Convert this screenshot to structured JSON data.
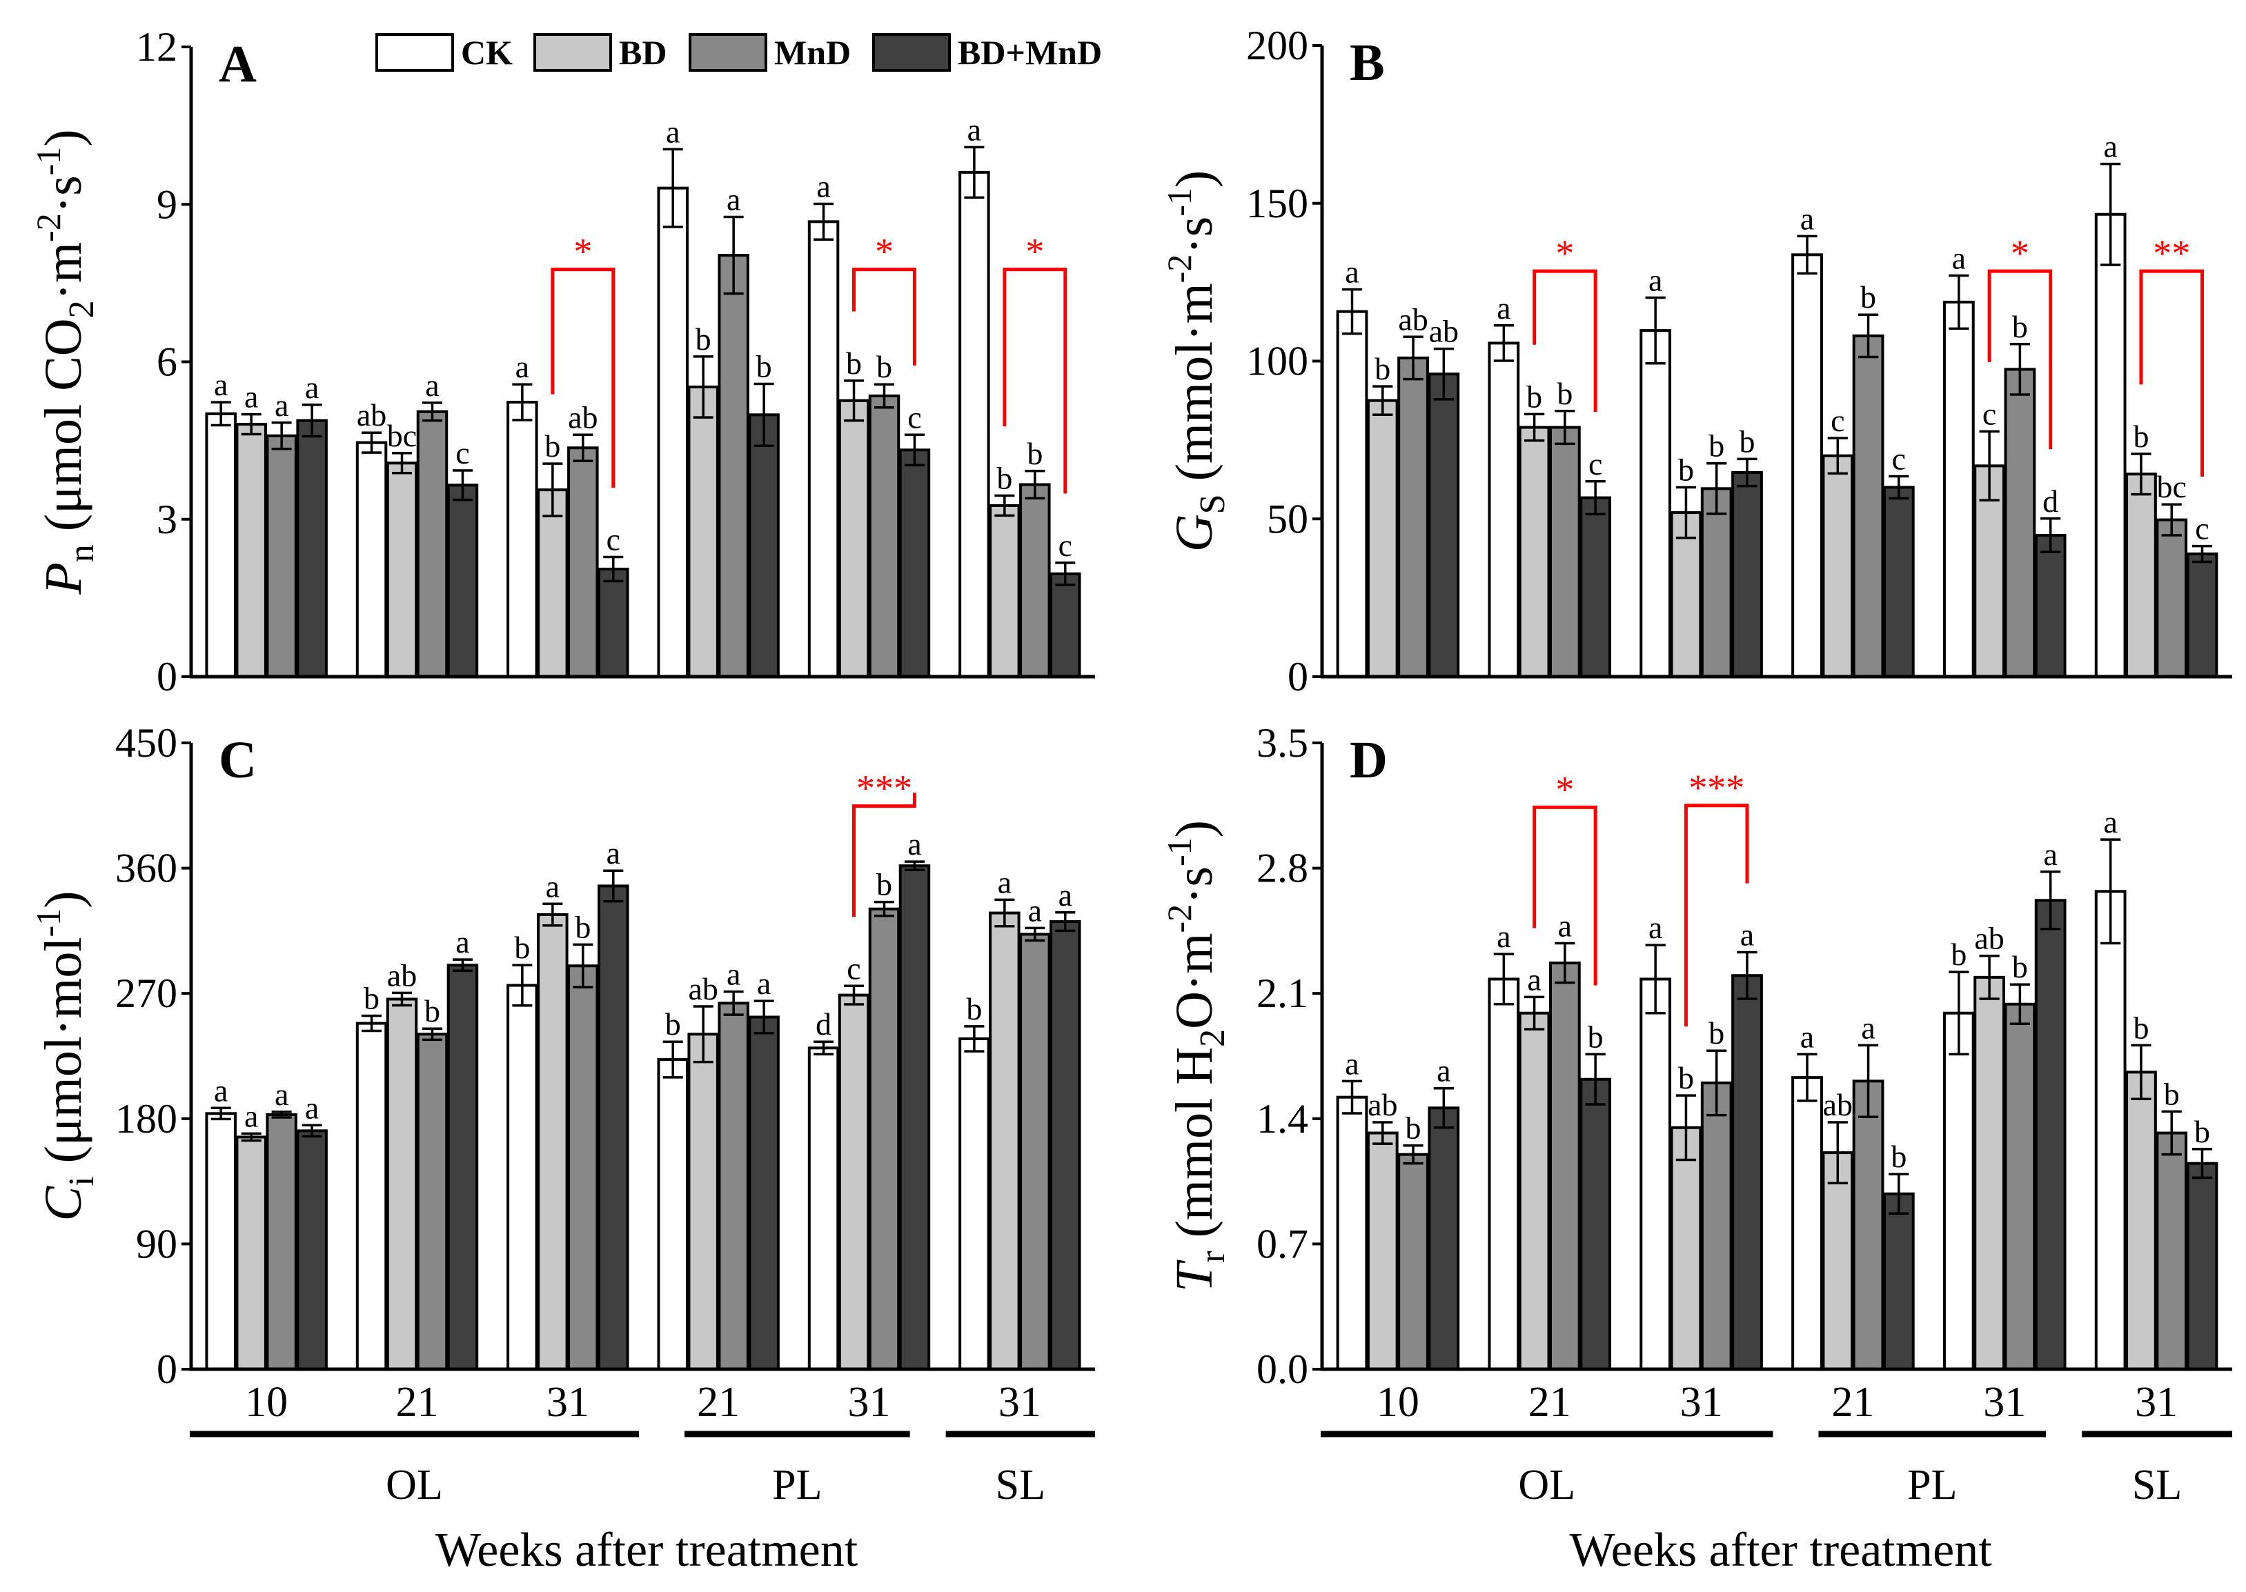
{
  "legend": {
    "position": "top",
    "items": [
      {
        "label": "CK",
        "color": "#ffffff"
      },
      {
        "label": "BD",
        "color": "#c8c8c8"
      },
      {
        "label": "MnD",
        "color": "#888888"
      },
      {
        "label": "BD+MnD",
        "color": "#404040"
      }
    ]
  },
  "sig_color": "#ff0000",
  "chart_data": [
    {
      "type": "bar",
      "panel": "A",
      "ylabel": [
        {
          "t": "P",
          "s": "i"
        },
        {
          "t": "n",
          "s": "sub"
        },
        {
          "t": " (μmol CO"
        },
        {
          "t": "2",
          "s": "sub"
        },
        {
          "t": "·m"
        },
        {
          "t": "-2",
          "s": "sup"
        },
        {
          "t": "·s"
        },
        {
          "t": "-1",
          "s": "sup"
        },
        {
          "t": ")"
        }
      ],
      "ylim": [
        0,
        12
      ],
      "yticks": [
        0,
        3,
        6,
        9,
        12
      ],
      "ytick_labels": [
        "0",
        "3",
        "6",
        "9",
        "12"
      ],
      "show_x_labels": false,
      "categories": [
        "10",
        "21",
        "31",
        "21",
        "31",
        "31"
      ],
      "series": [
        {
          "name": "CK",
          "values": [
            5.01,
            4.46,
            5.23,
            9.31,
            8.67,
            9.61
          ],
          "errors": [
            0.22,
            0.19,
            0.34,
            0.74,
            0.34,
            0.48
          ],
          "letters": [
            "a",
            "ab",
            "a",
            "a",
            "a",
            "a"
          ]
        },
        {
          "name": "BD",
          "values": [
            4.81,
            4.07,
            3.56,
            5.52,
            5.26,
            3.26
          ],
          "errors": [
            0.19,
            0.19,
            0.5,
            0.58,
            0.38,
            0.19
          ],
          "letters": [
            "a",
            "bc",
            "b",
            "b",
            "b",
            "b"
          ]
        },
        {
          "name": "MnD",
          "values": [
            4.59,
            5.05,
            4.36,
            8.03,
            5.35,
            3.66
          ],
          "errors": [
            0.25,
            0.17,
            0.25,
            0.73,
            0.22,
            0.26
          ],
          "letters": [
            "a",
            "a",
            "ab",
            "a",
            "b",
            "b"
          ]
        },
        {
          "name": "BD+MnD",
          "values": [
            4.88,
            3.65,
            2.05,
            4.99,
            4.32,
            1.96
          ],
          "errors": [
            0.3,
            0.28,
            0.23,
            0.59,
            0.29,
            0.21
          ],
          "letters": [
            "a",
            "c",
            "c",
            "b",
            "c",
            "c"
          ]
        }
      ],
      "significance": [
        {
          "group": 2,
          "from": 1,
          "to": 3,
          "label": "*",
          "level": 7.76
        },
        {
          "group": 4,
          "from": 1,
          "to": 3,
          "label": "*",
          "level": 7.76
        },
        {
          "group": 5,
          "from": 1,
          "to": 3,
          "label": "*",
          "level": 7.76
        }
      ]
    },
    {
      "type": "bar",
      "panel": "B",
      "ylabel": [
        {
          "t": "G",
          "s": "i"
        },
        {
          "t": "S",
          "s": "sub"
        },
        {
          "t": " (mmol·m"
        },
        {
          "t": "-2",
          "s": "sup"
        },
        {
          "t": "·s"
        },
        {
          "t": "-1",
          "s": "sup"
        },
        {
          "t": ")"
        }
      ],
      "ylim": [
        0,
        200
      ],
      "yticks": [
        0,
        50,
        100,
        150,
        200
      ],
      "ytick_labels": [
        "0",
        "50",
        "100",
        "150",
        "200"
      ],
      "show_x_labels": false,
      "categories": [
        "10",
        "21",
        "31",
        "21",
        "31",
        "31"
      ],
      "series": [
        {
          "name": "CK",
          "values": [
            115.7,
            105.7,
            109.7,
            133.7,
            118.7,
            146.5
          ],
          "errors": [
            7,
            5.6,
            10.4,
            5.9,
            8.4,
            16
          ],
          "letters": [
            "a",
            "a",
            "a",
            "a",
            "a",
            "a"
          ]
        },
        {
          "name": "BD",
          "values": [
            87.5,
            79,
            52,
            70,
            66.8,
            64.2
          ],
          "errors": [
            4.5,
            4.2,
            8,
            5.6,
            10.9,
            6.4
          ],
          "letters": [
            "b",
            "b",
            "b",
            "c",
            "c",
            "b"
          ]
        },
        {
          "name": "MnD",
          "values": [
            101,
            79,
            59.6,
            108,
            97.4,
            49.7
          ],
          "errors": [
            6.7,
            5.2,
            8,
            6.7,
            8,
            4.9
          ],
          "letters": [
            "ab",
            "b",
            "b",
            "b",
            "b",
            "bc"
          ]
        },
        {
          "name": "BD+MnD",
          "values": [
            95.9,
            56.7,
            64.7,
            60,
            44.8,
            38.9
          ],
          "errors": [
            8,
            5.2,
            4.3,
            3.5,
            5.3,
            2.5
          ],
          "letters": [
            "ab",
            "c",
            "b",
            "c",
            "d",
            "c"
          ]
        }
      ],
      "significance": [
        {
          "group": 1,
          "from": 1,
          "to": 3,
          "label": "*",
          "level": 128.5
        },
        {
          "group": 4,
          "from": 1,
          "to": 3,
          "label": "*",
          "level": 128.5
        },
        {
          "group": 5,
          "from": 1,
          "to": 3,
          "label": "**",
          "level": 128.5
        }
      ]
    },
    {
      "type": "bar",
      "panel": "C",
      "ylabel": [
        {
          "t": "C",
          "s": "i"
        },
        {
          "t": "i",
          "s": "sub"
        },
        {
          "t": " (μmol·mol"
        },
        {
          "t": "-1",
          "s": "sup"
        },
        {
          "t": ")"
        }
      ],
      "ylim": [
        0,
        450
      ],
      "yticks": [
        0,
        90,
        180,
        270,
        360,
        450
      ],
      "ytick_labels": [
        "0",
        "90",
        "180",
        "270",
        "360",
        "450"
      ],
      "show_x_labels": true,
      "categories": [
        "10",
        "21",
        "31",
        "21",
        "31",
        "31"
      ],
      "category_groups": [
        {
          "label": "OL",
          "start": 0,
          "end": 2
        },
        {
          "label": "PL",
          "start": 3,
          "end": 4
        },
        {
          "label": "SL",
          "start": 5,
          "end": 5
        }
      ],
      "xlabel": "Weeks after treatment",
      "series": [
        {
          "name": "CK",
          "values": [
            183.7,
            248.5,
            275.8,
            222.5,
            230.8,
            237.4
          ],
          "errors": [
            4,
            5.4,
            14.5,
            12.8,
            4.5,
            9
          ],
          "letters": [
            "a",
            "b",
            "b",
            "b",
            "d",
            "b"
          ]
        },
        {
          "name": "BD",
          "values": [
            166.8,
            265.9,
            326.6,
            240.7,
            268.8,
            327.8
          ],
          "errors": [
            2.5,
            4.5,
            7.8,
            20,
            6.6,
            9.5
          ],
          "letters": [
            "a",
            "ab",
            "a",
            "ab",
            "c",
            "a"
          ]
        },
        {
          "name": "MnD",
          "values": [
            182.9,
            240.7,
            289.8,
            263,
            330.7,
            312.5
          ],
          "errors": [
            2,
            4,
            15.3,
            8.3,
            5,
            4.5
          ],
          "letters": [
            "a",
            "b",
            "b",
            "a",
            "b",
            "a"
          ]
        },
        {
          "name": "BD+MnD",
          "values": [
            171.3,
            290.3,
            347.2,
            253,
            361.7,
            321.6
          ],
          "errors": [
            4,
            4,
            11,
            11.6,
            3,
            6.6
          ],
          "letters": [
            "a",
            "a",
            "a",
            "a",
            "a",
            "a"
          ]
        }
      ],
      "significance": [
        {
          "group": 4,
          "from": 1,
          "to": 3,
          "label": "***",
          "level": 404.6
        }
      ]
    },
    {
      "type": "bar",
      "panel": "D",
      "ylabel": [
        {
          "t": "T",
          "s": "i"
        },
        {
          "t": "r",
          "s": "sub"
        },
        {
          "t": " (mmol H"
        },
        {
          "t": "2",
          "s": "sub"
        },
        {
          "t": "O·m"
        },
        {
          "t": "-2",
          "s": "sup"
        },
        {
          "t": "·s"
        },
        {
          "t": "-1",
          "s": "sup"
        },
        {
          "t": ")"
        }
      ],
      "ylim": [
        0,
        3.5
      ],
      "yticks": [
        0,
        0.7,
        1.4,
        2.1,
        2.8,
        3.5
      ],
      "ytick_labels": [
        "0.0",
        "0.7",
        "1.4",
        "2.1",
        "2.8",
        "3.5"
      ],
      "show_x_labels": true,
      "categories": [
        "10",
        "21",
        "31",
        "21",
        "31",
        "31"
      ],
      "category_groups": [
        {
          "label": "OL",
          "start": 0,
          "end": 2
        },
        {
          "label": "PL",
          "start": 3,
          "end": 4
        },
        {
          "label": "SL",
          "start": 5,
          "end": 5
        }
      ],
      "xlabel": "Weeks after treatment",
      "series": [
        {
          "name": "CK",
          "values": [
            1.52,
            2.18,
            2.18,
            1.63,
            1.99,
            2.67
          ],
          "errors": [
            0.09,
            0.14,
            0.19,
            0.13,
            0.23,
            0.29
          ],
          "letters": [
            "a",
            "a",
            "a",
            "a",
            "b",
            "a"
          ]
        },
        {
          "name": "BD",
          "values": [
            1.32,
            1.99,
            1.35,
            1.21,
            2.19,
            1.66
          ],
          "errors": [
            0.06,
            0.09,
            0.18,
            0.17,
            0.12,
            0.15
          ],
          "letters": [
            "ab",
            "a",
            "b",
            "ab",
            "ab",
            "b"
          ]
        },
        {
          "name": "MnD",
          "values": [
            1.2,
            2.27,
            1.6,
            1.61,
            2.04,
            1.32
          ],
          "errors": [
            0.05,
            0.11,
            0.18,
            0.2,
            0.11,
            0.12
          ],
          "letters": [
            "b",
            "a",
            "b",
            "a",
            "b",
            "b"
          ]
        },
        {
          "name": "BD+MnD",
          "values": [
            1.46,
            1.62,
            2.2,
            0.98,
            2.62,
            1.15
          ],
          "errors": [
            0.11,
            0.14,
            0.13,
            0.11,
            0.16,
            0.08
          ],
          "letters": [
            "a",
            "b",
            "a",
            "b",
            "a",
            "b"
          ]
        }
      ],
      "significance": [
        {
          "group": 1,
          "from": 1,
          "to": 3,
          "label": "*",
          "level": 3.14
        },
        {
          "group": 2,
          "from": 1,
          "to": 3,
          "label": "***",
          "level": 3.15
        }
      ]
    }
  ]
}
